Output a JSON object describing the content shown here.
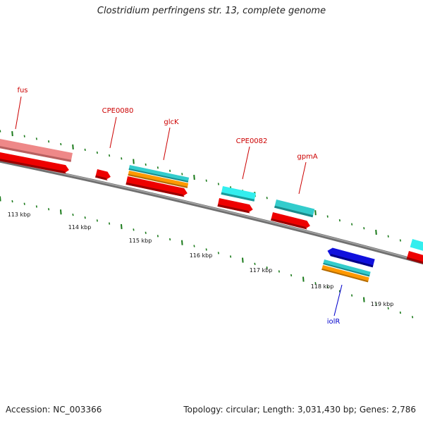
{
  "header": {
    "title": "Clostridium perfringens str. 13, complete genome"
  },
  "footer": {
    "accession": "Accession: NC_003366",
    "stats": "Topology: circular; Length: 3,031,430 bp; Genes: 2,786"
  },
  "colors": {
    "backbone": "#808080",
    "tick": "#1a7a1a",
    "label_red": "#cc0000",
    "label_blue": "#0000cc",
    "feature_pink": "#ee8888",
    "feature_red": "#ee0000",
    "feature_cyan": "#33cccc",
    "feature_orange": "#ff9900",
    "feature_blue": "#1010dd"
  },
  "scale_labels": [
    "113 kbp",
    "114 kbp",
    "115 kbp",
    "116 kbp",
    "117 kbp",
    "118 kbp",
    "119 kbp"
  ],
  "gene_labels": [
    {
      "name": "fus",
      "color": "label_red"
    },
    {
      "name": "CPE0080",
      "color": "label_red"
    },
    {
      "name": "glcK",
      "color": "label_red"
    },
    {
      "name": "CPE0082",
      "color": "label_red"
    },
    {
      "name": "gpmA",
      "color": "label_red"
    },
    {
      "name": "iolR",
      "color": "label_blue"
    }
  ]
}
